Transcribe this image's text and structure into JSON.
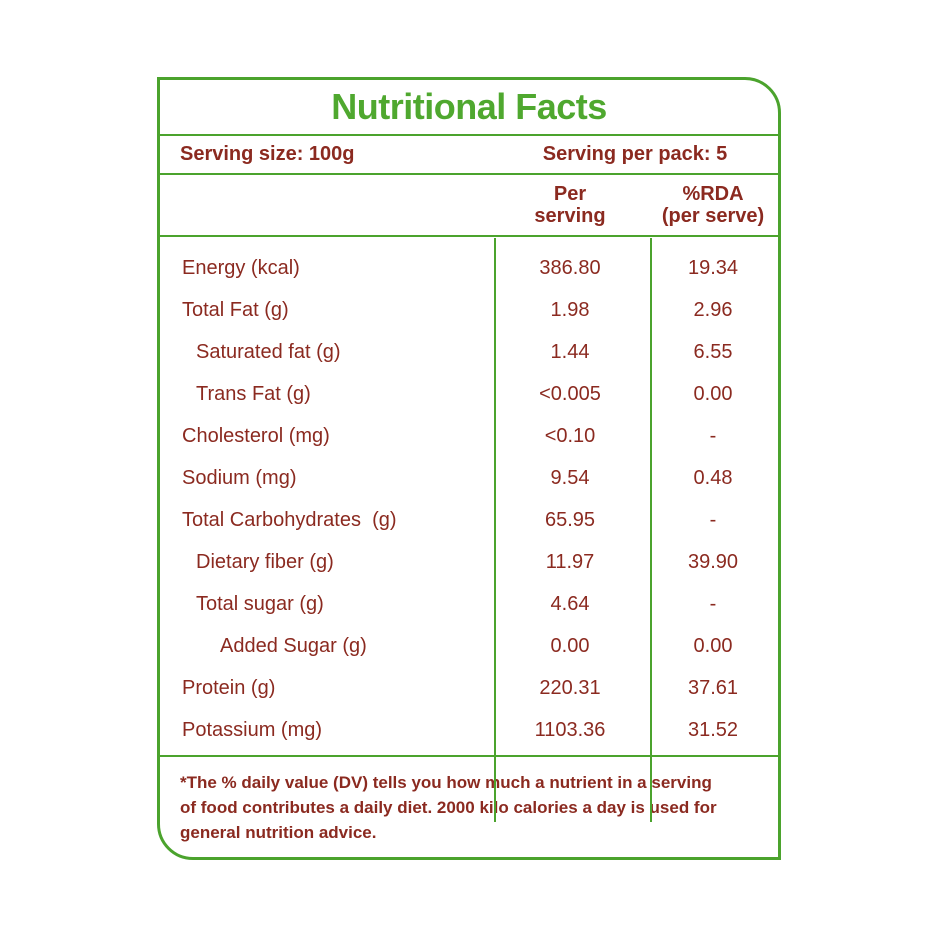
{
  "colors": {
    "green": "#4ba32d",
    "maroon": "#8b2a20",
    "title_green": "#4fa82f"
  },
  "title": "Nutritional Facts",
  "serving": {
    "size_label": "Serving size: 100g",
    "per_pack_label": "Serving per pack: 5"
  },
  "header": {
    "per_serving_line1": "Per",
    "per_serving_line2": "serving",
    "rda_line1": "%RDA",
    "rda_line2": "(per serve)"
  },
  "rows": [
    {
      "label": "Energy (kcal)",
      "per_serving": "386.80",
      "rda": "19.34",
      "indent": 0
    },
    {
      "label": "Total Fat (g)",
      "per_serving": "1.98",
      "rda": "2.96",
      "indent": 0
    },
    {
      "label": "Saturated fat (g)",
      "per_serving": "1.44",
      "rda": "6.55",
      "indent": 1
    },
    {
      "label": "Trans Fat (g)",
      "per_serving": "<0.005",
      "rda": "0.00",
      "indent": 1
    },
    {
      "label": "Cholesterol (mg)",
      "per_serving": "<0.10",
      "rda": "-",
      "indent": 0
    },
    {
      "label": "Sodium (mg)",
      "per_serving": "9.54",
      "rda": "0.48",
      "indent": 0
    },
    {
      "label": "Total Carbohydrates  (g)",
      "per_serving": "65.95",
      "rda": "-",
      "indent": 0
    },
    {
      "label": "Dietary fiber (g)",
      "per_serving": "11.97",
      "rda": "39.90",
      "indent": 1
    },
    {
      "label": "Total sugar (g)",
      "per_serving": "4.64",
      "rda": "-",
      "indent": 1
    },
    {
      "label": "Added Sugar (g)",
      "per_serving": "0.00",
      "rda": "0.00",
      "indent": 2
    },
    {
      "label": "Protein (g)",
      "per_serving": "220.31",
      "rda": "37.61",
      "indent": 0
    },
    {
      "label": "Potassium (mg)",
      "per_serving": "1103.36",
      "rda": "31.52",
      "indent": 0
    }
  ],
  "footnote": {
    "line1": "*The % daily value (DV) tells you how much a nutrient in a serving",
    "line2": "of food contributes a daily diet. 2000 kilo calories a day is used for",
    "line3": "general nutrition advice."
  }
}
